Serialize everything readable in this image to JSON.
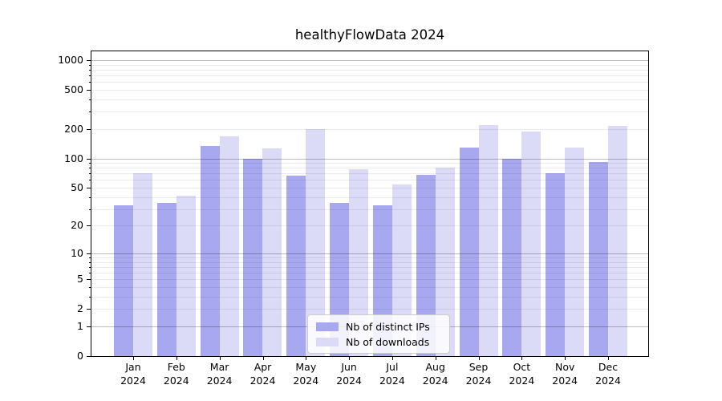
{
  "chart_data": {
    "type": "bar",
    "title": "healthyFlowData 2024",
    "xlabel": "",
    "ylabel": "",
    "yscale": "log1p",
    "ylim": [
      0,
      1230
    ],
    "grid": "both",
    "legend_position": "lower center",
    "y_ticks": [
      0,
      1,
      2,
      5,
      10,
      20,
      50,
      100,
      200,
      500,
      1000
    ],
    "categories": [
      {
        "label": "Jan",
        "sublabel": "2024"
      },
      {
        "label": "Feb",
        "sublabel": "2024"
      },
      {
        "label": "Mar",
        "sublabel": "2024"
      },
      {
        "label": "Apr",
        "sublabel": "2024"
      },
      {
        "label": "May",
        "sublabel": "2024"
      },
      {
        "label": "Jun",
        "sublabel": "2024"
      },
      {
        "label": "Jul",
        "sublabel": "2024"
      },
      {
        "label": "Aug",
        "sublabel": "2024"
      },
      {
        "label": "Sep",
        "sublabel": "2024"
      },
      {
        "label": "Oct",
        "sublabel": "2024"
      },
      {
        "label": "Nov",
        "sublabel": "2024"
      },
      {
        "label": "Dec",
        "sublabel": "2024"
      }
    ],
    "series": [
      {
        "name": "Nb of distinct IPs",
        "color": "#a8a8f0",
        "values": [
          33,
          35,
          135,
          100,
          67,
          35,
          33,
          68,
          130,
          100,
          70,
          92
        ]
      },
      {
        "name": "Nb of downloads",
        "color": "#dbdbf8",
        "values": [
          70,
          41,
          168,
          126,
          199,
          77,
          54,
          80,
          219,
          190,
          128,
          215
        ]
      }
    ]
  }
}
